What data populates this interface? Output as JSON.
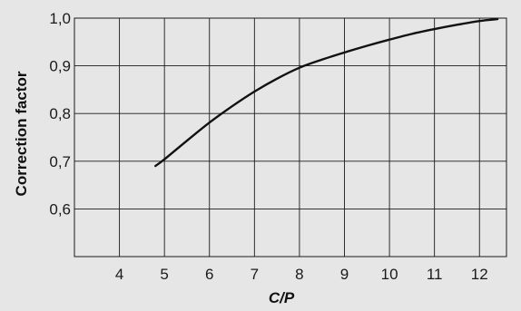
{
  "chart_data": {
    "type": "line",
    "title": "",
    "xlabel": "C/P",
    "ylabel": "Correction factor",
    "xlim": [
      3,
      12.6
    ],
    "ylim": [
      0.5,
      1.0
    ],
    "x_ticks": [
      "4",
      "5",
      "6",
      "7",
      "8",
      "9",
      "10",
      "11",
      "12"
    ],
    "y_ticks": [
      "0,6",
      "0,7",
      "0,8",
      "0,9",
      "1,0"
    ],
    "grid": true,
    "series": [
      {
        "x": [
          4.8,
          5,
          5.5,
          6,
          6.5,
          7,
          7.5,
          8,
          8.5,
          9,
          9.5,
          10,
          10.5,
          11,
          11.5,
          12,
          12.4
        ],
        "y": [
          0.69,
          0.704,
          0.743,
          0.781,
          0.815,
          0.846,
          0.873,
          0.896,
          0.913,
          0.928,
          0.942,
          0.955,
          0.967,
          0.977,
          0.986,
          0.994,
          0.998
        ]
      }
    ]
  },
  "colors": {
    "background": "#e6e6e6",
    "plot_background": "#e6e6e6",
    "grid": "#1a1a1a",
    "line": "#111111"
  }
}
